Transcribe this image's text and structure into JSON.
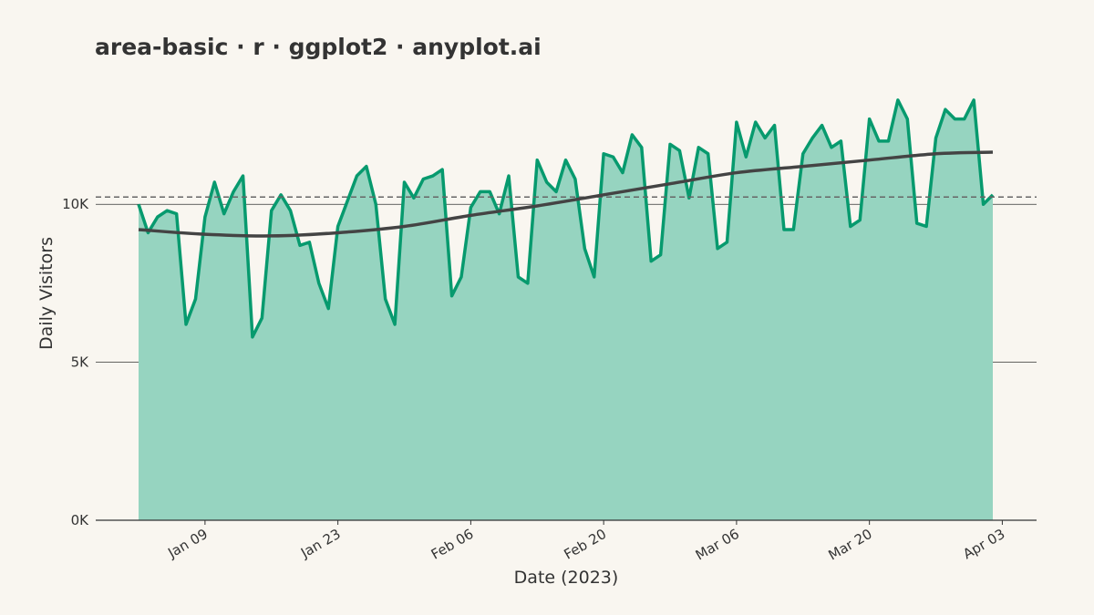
{
  "chart_data": {
    "type": "area",
    "title": "area-basic · r · ggplot2 · anyplot.ai",
    "x_label": "Date (2023)",
    "y_label": "Daily Visitors",
    "x": [
      "2023-01-02",
      "2023-01-03",
      "2023-01-04",
      "2023-01-05",
      "2023-01-06",
      "2023-01-07",
      "2023-01-08",
      "2023-01-09",
      "2023-01-10",
      "2023-01-11",
      "2023-01-12",
      "2023-01-13",
      "2023-01-14",
      "2023-01-15",
      "2023-01-16",
      "2023-01-17",
      "2023-01-18",
      "2023-01-19",
      "2023-01-20",
      "2023-01-21",
      "2023-01-22",
      "2023-01-23",
      "2023-01-24",
      "2023-01-25",
      "2023-01-26",
      "2023-01-27",
      "2023-01-28",
      "2023-01-29",
      "2023-01-30",
      "2023-01-31",
      "2023-02-01",
      "2023-02-02",
      "2023-02-03",
      "2023-02-04",
      "2023-02-05",
      "2023-02-06",
      "2023-02-07",
      "2023-02-08",
      "2023-02-09",
      "2023-02-10",
      "2023-02-11",
      "2023-02-12",
      "2023-02-13",
      "2023-02-14",
      "2023-02-15",
      "2023-02-16",
      "2023-02-17",
      "2023-02-18",
      "2023-02-19",
      "2023-02-20",
      "2023-02-21",
      "2023-02-22",
      "2023-02-23",
      "2023-02-24",
      "2023-02-25",
      "2023-02-26",
      "2023-02-27",
      "2023-02-28",
      "2023-03-01",
      "2023-03-02",
      "2023-03-03",
      "2023-03-04",
      "2023-03-05",
      "2023-03-06",
      "2023-03-07",
      "2023-03-08",
      "2023-03-09",
      "2023-03-10",
      "2023-03-11",
      "2023-03-12",
      "2023-03-13",
      "2023-03-14",
      "2023-03-15",
      "2023-03-16",
      "2023-03-17",
      "2023-03-18",
      "2023-03-19",
      "2023-03-20",
      "2023-03-21",
      "2023-03-22",
      "2023-03-23",
      "2023-03-24",
      "2023-03-25",
      "2023-03-26",
      "2023-03-27",
      "2023-03-28",
      "2023-03-29",
      "2023-03-30",
      "2023-03-31",
      "2023-04-01",
      "2023-04-02"
    ],
    "values": [
      10000,
      9100,
      9600,
      9800,
      9700,
      6200,
      7000,
      9600,
      10700,
      9700,
      10400,
      10900,
      5800,
      6400,
      9800,
      10300,
      9800,
      8700,
      8800,
      7500,
      6700,
      9300,
      10100,
      10900,
      11200,
      10000,
      7000,
      6200,
      10700,
      10200,
      10800,
      10900,
      11100,
      7100,
      7700,
      9900,
      10400,
      10400,
      9700,
      10900,
      7700,
      7500,
      11400,
      10700,
      10400,
      11400,
      10800,
      8600,
      7700,
      11600,
      11500,
      11000,
      12200,
      11800,
      8200,
      8400,
      11900,
      11700,
      10200,
      11800,
      11600,
      8600,
      8800,
      12600,
      11500,
      12600,
      12100,
      12500,
      9200,
      9200,
      11600,
      12100,
      12500,
      11800,
      12000,
      9300,
      9500,
      12700,
      12000,
      12000,
      13300,
      12700,
      9400,
      9300,
      12100,
      13000,
      12700,
      12700,
      13300,
      10000,
      10300
    ],
    "line_color": "#079a6e",
    "fill_color": "#96d4c0",
    "smooth": {
      "color": "#444444",
      "x": [
        "2023-01-02",
        "2023-01-09",
        "2023-01-16",
        "2023-01-23",
        "2023-01-30",
        "2023-02-06",
        "2023-02-13",
        "2023-02-20",
        "2023-02-27",
        "2023-03-06",
        "2023-03-13",
        "2023-03-20",
        "2023-03-27",
        "2023-04-02"
      ],
      "values": [
        9200,
        9050,
        9000,
        9100,
        9300,
        9650,
        9950,
        10300,
        10650,
        11000,
        11200,
        11400,
        11600,
        11650
      ]
    },
    "mean_line": 10230,
    "ylim": [
      0,
      13900
    ],
    "yticks": [
      {
        "value": 0,
        "label": "0K"
      },
      {
        "value": 5000,
        "label": "5K"
      },
      {
        "value": 10000,
        "label": "10K"
      }
    ],
    "xticks": [
      {
        "value": "2023-01-09",
        "label": "Jan 09"
      },
      {
        "value": "2023-01-23",
        "label": "Jan 23"
      },
      {
        "value": "2023-02-06",
        "label": "Feb 06"
      },
      {
        "value": "2023-02-20",
        "label": "Feb 20"
      },
      {
        "value": "2023-03-06",
        "label": "Mar 06"
      },
      {
        "value": "2023-03-20",
        "label": "Mar 20"
      },
      {
        "value": "2023-04-03",
        "label": "Apr 03"
      }
    ],
    "grid": true
  }
}
